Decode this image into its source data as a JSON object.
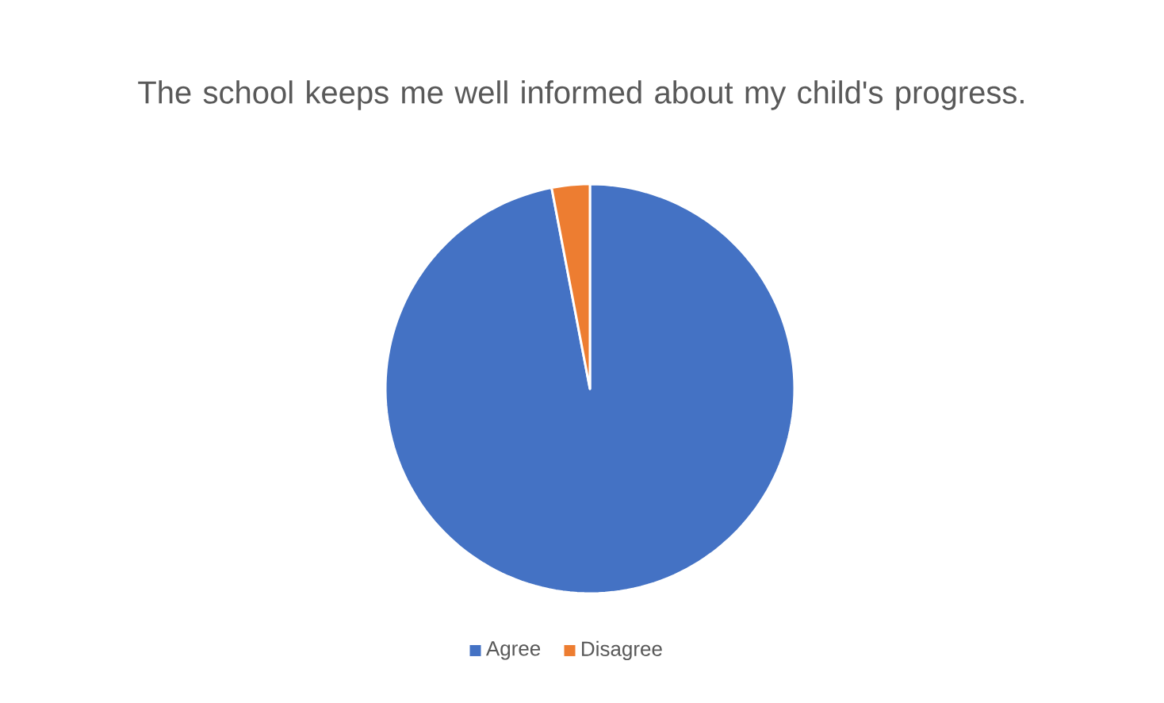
{
  "chart_data": {
    "type": "pie",
    "title": "The school keeps me well informed about my child's progress.",
    "categories": [
      "Agree",
      "Disagree"
    ],
    "values": [
      97,
      3
    ],
    "colors": [
      "#4472c4",
      "#ed7d31"
    ],
    "legend": "bottom"
  }
}
